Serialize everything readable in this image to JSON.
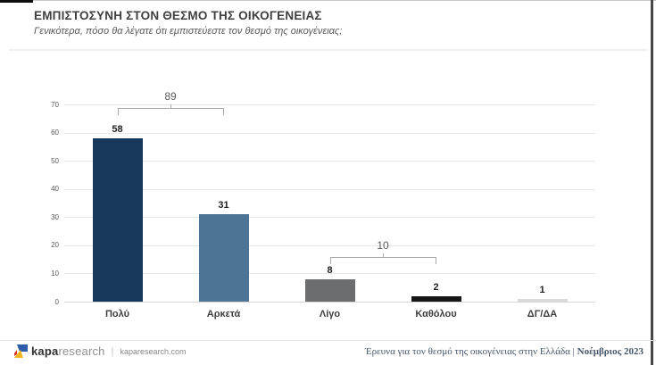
{
  "header": {
    "title": "ΕΜΠΙΣΤΟΣΥΝΗ ΣΤΟΝ ΘΕΣΜΟ ΤΗΣ ΟΙΚΟΓΕΝΕΙΑΣ",
    "subtitle": "Γενικότερα, πόσο θα λέγατε ότι εμπιστεύεστε τον θεσμό της οικογένειας;"
  },
  "chart_data": {
    "type": "bar",
    "title": "",
    "xlabel": "",
    "ylabel": "",
    "categories": [
      "Πολύ",
      "Αρκετά",
      "Λίγο",
      "Καθόλου",
      "ΔΓ/ΔΑ"
    ],
    "values": [
      58,
      31,
      8,
      2,
      1
    ],
    "bar_colors": [
      "#17375d",
      "#4e7495",
      "#6c6d6f",
      "#161616",
      "#d9d9d9"
    ],
    "ylim": [
      0,
      70
    ],
    "ytick_step": 10,
    "grid": true,
    "legend": false,
    "annotations": [
      {
        "label": "89",
        "from_index": 0,
        "to_index": 1,
        "line_value": 68.6
      },
      {
        "label": "10",
        "from_index": 2,
        "to_index": 3,
        "line_value": 15.8
      }
    ]
  },
  "footer": {
    "logo_kapa": "kapa",
    "logo_research": "research",
    "divider": "|",
    "website": "kaparesearch.com",
    "source_text": "Έρευνα για τον θεσμό της οικογένειας στην Ελλάδα | ",
    "source_date": "Νοέμβριος 2023"
  },
  "colors": {
    "accent_navy": "#17375d",
    "accent_steel": "#4e7495",
    "gridline": "#e7e7e7",
    "bracket": "#a8a8a8",
    "footer_text": "#44546a",
    "logo_blue": "#2d5ca8",
    "logo_yellow": "#f2b51c",
    "logo_red": "#c8321e"
  }
}
